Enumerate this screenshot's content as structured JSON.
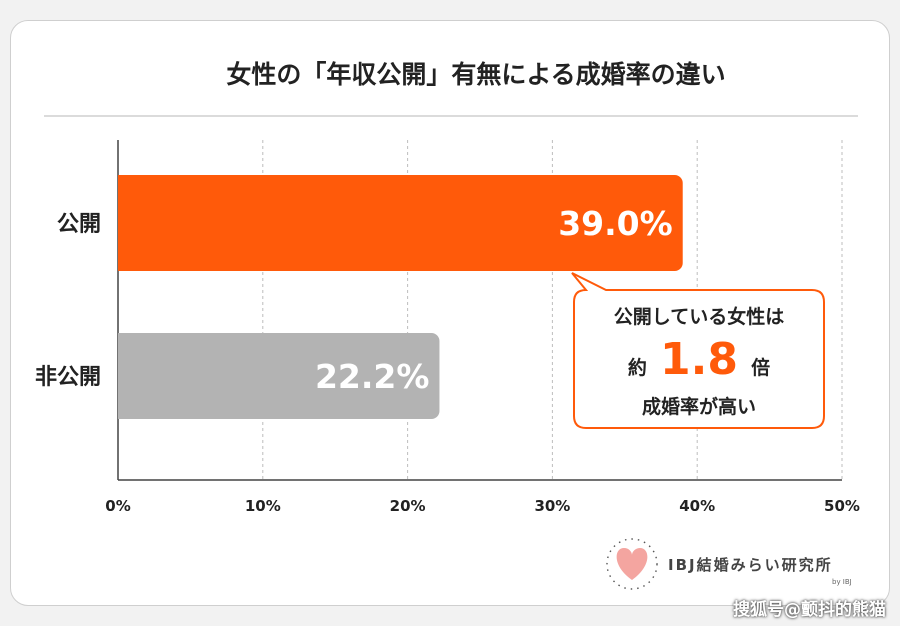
{
  "chart_data": {
    "type": "bar",
    "orientation": "horizontal",
    "title": "女性の「年収公開」有無による成婚率の違い",
    "categories": [
      "公開",
      "非公開"
    ],
    "values": [
      39.0,
      22.2
    ],
    "value_labels": [
      "39.0%",
      "22.2%"
    ],
    "bar_colors": [
      "#ff5a0a",
      "#b3b3b3"
    ],
    "xlim": [
      0,
      50
    ],
    "xticks": [
      "0%",
      "10%",
      "20%",
      "30%",
      "40%",
      "50%"
    ],
    "grid": "vertical dashed",
    "annotation": {
      "line1": "公開している女性は",
      "prefix": "約",
      "big": "1.8",
      "suffix": "倍",
      "line3": "成婚率が高い",
      "accent": "#ff5a0a"
    }
  },
  "logo": {
    "text": "IBJ結婚みらい研究所",
    "by": "by IBJ",
    "heart_color": "#f4a5a0"
  },
  "watermark": "搜狐号@颤抖的熊猫"
}
